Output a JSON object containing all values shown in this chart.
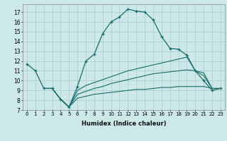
{
  "xlabel": "Humidex (Indice chaleur)",
  "bg_color": "#cce8e8",
  "line_color": "#1a6b6b",
  "grid_color": "#aacccc",
  "xlim": [
    -0.5,
    23.5
  ],
  "ylim": [
    7,
    17.8
  ],
  "xticks": [
    0,
    1,
    2,
    3,
    4,
    5,
    6,
    7,
    8,
    9,
    10,
    11,
    12,
    13,
    14,
    15,
    16,
    17,
    18,
    19,
    20,
    21,
    22,
    23
  ],
  "yticks": [
    7,
    8,
    9,
    10,
    11,
    12,
    13,
    14,
    15,
    16,
    17
  ],
  "line1_x": [
    0,
    1,
    2,
    3,
    4,
    5,
    6,
    7,
    8,
    9,
    10,
    11,
    12,
    13,
    14,
    15,
    16,
    17,
    18,
    19,
    20,
    21,
    22,
    23
  ],
  "line1_y": [
    11.7,
    11.0,
    9.2,
    9.2,
    8.1,
    7.3,
    9.4,
    12.0,
    12.7,
    14.8,
    16.0,
    16.5,
    17.3,
    17.1,
    17.0,
    16.2,
    14.5,
    13.3,
    13.2,
    12.6,
    11.0,
    10.0,
    9.0,
    9.2
  ],
  "line2_x": [
    2,
    3,
    4,
    5,
    6,
    7,
    8,
    9,
    10,
    11,
    12,
    13,
    14,
    15,
    16,
    17,
    18,
    19,
    20,
    21,
    22,
    23
  ],
  "line2_y": [
    9.2,
    9.2,
    8.1,
    7.3,
    9.0,
    9.5,
    9.8,
    10.1,
    10.4,
    10.7,
    11.0,
    11.2,
    11.4,
    11.6,
    11.8,
    12.0,
    12.2,
    12.4,
    11.0,
    10.5,
    9.2,
    9.2
  ],
  "line3_x": [
    2,
    3,
    4,
    5,
    6,
    7,
    8,
    9,
    10,
    11,
    12,
    13,
    14,
    15,
    16,
    17,
    18,
    19,
    20,
    21,
    22,
    23
  ],
  "line3_y": [
    9.2,
    9.2,
    8.1,
    7.3,
    8.6,
    8.9,
    9.2,
    9.4,
    9.7,
    9.9,
    10.1,
    10.3,
    10.5,
    10.7,
    10.8,
    10.9,
    11.0,
    11.1,
    11.0,
    10.8,
    9.2,
    9.2
  ],
  "line4_x": [
    2,
    3,
    4,
    5,
    6,
    7,
    8,
    9,
    10,
    11,
    12,
    13,
    14,
    15,
    16,
    17,
    18,
    19,
    20,
    21,
    22,
    23
  ],
  "line4_y": [
    9.2,
    9.2,
    8.1,
    7.3,
    8.2,
    8.4,
    8.6,
    8.7,
    8.8,
    8.9,
    9.0,
    9.1,
    9.1,
    9.2,
    9.3,
    9.3,
    9.4,
    9.4,
    9.4,
    9.4,
    9.2,
    9.2
  ]
}
